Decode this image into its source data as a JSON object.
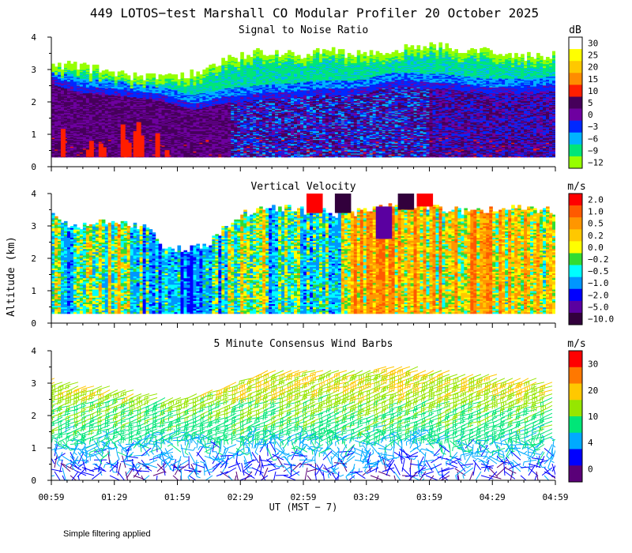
{
  "title": "449 LOTOS−test Marshall CO Modular Profiler 20 October 2025",
  "xlabel": "UT  (MST − 7)",
  "ylabel": "Altitude (km)",
  "footnote": "Simple filtering applied",
  "x_ticks": [
    "00:59",
    "01:29",
    "01:59",
    "02:29",
    "02:59",
    "03:29",
    "03:59",
    "04:29",
    "04:59"
  ],
  "chart_data": [
    {
      "type": "heatmap",
      "title": "Signal to Noise Ratio",
      "unit": "dB",
      "xlabel": "UT  (MST − 7)",
      "ylabel": "Altitude (km)",
      "xlim": [
        "00:59",
        "04:59"
      ],
      "ylim": [
        0,
        4
      ],
      "y_ticks": [
        "0",
        "1",
        "2",
        "3",
        "4"
      ],
      "colorbar": {
        "labels": [
          "30",
          "25",
          "20",
          "15",
          "10",
          "5",
          "0",
          "−3",
          "−6",
          "−9",
          "−12"
        ],
        "colors": [
          "#ffffff",
          "#ffff00",
          "#ffc800",
          "#ff8c00",
          "#ff1e00",
          "#46005a",
          "#6e00a0",
          "#0028ff",
          "#00b4ff",
          "#00e678",
          "#96ff00"
        ]
      },
      "cloud_top_km": [
        3.15,
        3.1,
        3.05,
        3.0,
        2.9,
        2.8,
        2.75,
        2.75,
        2.7,
        2.85,
        3.05,
        3.25,
        3.4,
        3.5,
        3.55,
        3.45,
        3.45,
        3.5,
        3.55,
        3.45,
        3.45,
        3.45,
        3.55,
        3.7,
        3.7,
        3.7,
        3.6,
        3.55,
        3.5,
        3.45,
        3.4,
        3.4,
        3.4
      ],
      "strong_layer_top_km": [
        2.65,
        2.5,
        2.35,
        2.35,
        2.3,
        2.25,
        2.2,
        2.15,
        2.0,
        1.85,
        1.95,
        2.05,
        2.1,
        2.15,
        2.2,
        2.2,
        2.25,
        2.3,
        2.3,
        2.3,
        2.35,
        2.5,
        2.55,
        2.55,
        2.5,
        2.5,
        2.45,
        2.4,
        2.35,
        2.35,
        2.35,
        2.4,
        2.45
      ]
    },
    {
      "type": "heatmap",
      "title": "Vertical Velocity",
      "unit": "m/s",
      "xlim": [
        "00:59",
        "04:59"
      ],
      "ylim": [
        0,
        4
      ],
      "y_ticks": [
        "0",
        "1",
        "2",
        "3",
        "4"
      ],
      "colorbar": {
        "labels": [
          "2.0",
          "1.0",
          "0.5",
          "0.2",
          "0.0",
          "−0.2",
          "−0.5",
          "−1.0",
          "−2.0",
          "−5.0",
          "−10.0"
        ],
        "colors": [
          "#ff0000",
          "#ff5a00",
          "#ff9600",
          "#ffc800",
          "#ffff00",
          "#32dc32",
          "#00ffff",
          "#0096ff",
          "#0000ff",
          "#5a00a0",
          "#32003c"
        ]
      },
      "cloud_top_km": [
        3.35,
        3.05,
        3.0,
        3.05,
        3.1,
        3.0,
        2.95,
        2.4,
        2.25,
        2.3,
        2.45,
        2.9,
        3.3,
        3.45,
        3.55,
        3.55,
        3.45,
        3.45,
        3.35,
        3.4,
        3.45,
        3.5,
        3.6,
        3.6,
        3.55,
        3.5,
        3.45,
        3.45,
        3.45,
        3.5,
        3.5,
        3.45,
        3.45
      ],
      "mean_w_ms": [
        -0.2,
        -0.5,
        -0.3,
        -0.1,
        0.1,
        -0.2,
        -0.6,
        -0.9,
        -1.0,
        -0.8,
        -0.6,
        -0.4,
        -0.3,
        -0.1,
        -0.3,
        -0.5,
        -0.3,
        -0.6,
        -0.5,
        0.4,
        0.6,
        0.7,
        0.6,
        0.5,
        0.4,
        0.5,
        0.5,
        0.6,
        0.5,
        0.4,
        0.4,
        0.3,
        0.3
      ]
    },
    {
      "type": "scatter",
      "title": "5 Minute Consensus Wind Barbs",
      "unit": "m/s",
      "xlim": [
        "00:59",
        "04:59"
      ],
      "ylim": [
        0,
        4
      ],
      "y_ticks": [
        "0",
        "1",
        "2",
        "3",
        "4"
      ],
      "colorbar": {
        "labels": [
          "30",
          "20",
          "10",
          "4",
          "0"
        ],
        "colors": [
          "#ff0000",
          "#ff7800",
          "#ffc800",
          "#96e600",
          "#00e678",
          "#00aaff",
          "#0000ff",
          "#5a0078"
        ]
      },
      "top_km": [
        3.2,
        3.1,
        3.0,
        2.95,
        2.9,
        2.8,
        2.75,
        2.65,
        2.6,
        2.7,
        2.8,
        2.9,
        3.1,
        3.3,
        3.45,
        3.5,
        3.4,
        3.4,
        3.45,
        3.4,
        3.4,
        3.5,
        3.6,
        3.55,
        3.5,
        3.45,
        3.35,
        3.3,
        3.3,
        3.25,
        3.2,
        3.15,
        3.1
      ],
      "speed_profile_ms": {
        "altitudes_km": [
          0.3,
          0.6,
          0.9,
          1.2,
          1.5,
          1.8,
          2.1,
          2.4,
          2.7,
          3.0,
          3.3
        ],
        "speeds": [
          4,
          6,
          8,
          10,
          12,
          13,
          14,
          16,
          18,
          20,
          20
        ]
      }
    }
  ]
}
